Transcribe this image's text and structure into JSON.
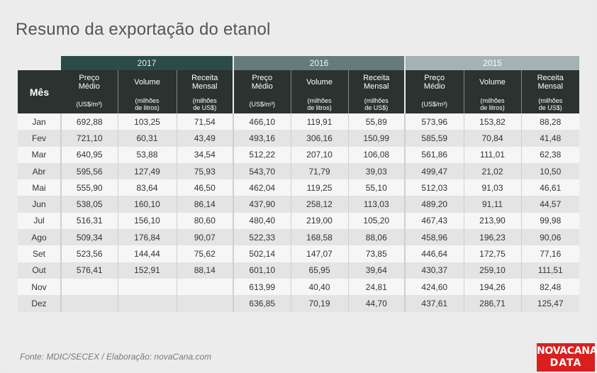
{
  "title": "Resumo da exportação do etanol",
  "header": {
    "mes": "Mês",
    "years": [
      "2017",
      "2016",
      "2015"
    ],
    "columns": [
      {
        "title": "Preço Médio",
        "unit": "(US$/m³)"
      },
      {
        "title": "Volume",
        "unit": "(milhões de litros)"
      },
      {
        "title": "Receita Mensal",
        "unit": "(milhões de US$)"
      }
    ]
  },
  "rows": [
    {
      "mes": "Jan",
      "v": [
        "692,88",
        "103,25",
        "71,54",
        "466,10",
        "119,91",
        "55,89",
        "573,96",
        "153,82",
        "88,28"
      ]
    },
    {
      "mes": "Fev",
      "v": [
        "721,10",
        "60,31",
        "43,49",
        "493,16",
        "306,16",
        "150,99",
        "585,59",
        "70,84",
        "41,48"
      ]
    },
    {
      "mes": "Mar",
      "v": [
        "640,95",
        "53,88",
        "34,54",
        "512,22",
        "207,10",
        "106,08",
        "561,86",
        "111,01",
        "62,38"
      ]
    },
    {
      "mes": "Abr",
      "v": [
        "595,56",
        "127,49",
        "75,93",
        "543,70",
        "71,79",
        "39,03",
        "499,47",
        "21,02",
        "10,50"
      ]
    },
    {
      "mes": "Mai",
      "v": [
        "555,90",
        "83,64",
        "46,50",
        "462,04",
        "119,25",
        "55,10",
        "512,03",
        "91,03",
        "46,61"
      ]
    },
    {
      "mes": "Jun",
      "v": [
        "538,05",
        "160,10",
        "86,14",
        "437,90",
        "258,12",
        "113,03",
        "489,20",
        "91,11",
        "44,57"
      ]
    },
    {
      "mes": "Jul",
      "v": [
        "516,31",
        "156,10",
        "80,60",
        "480,40",
        "219,00",
        "105,20",
        "467,43",
        "213,90",
        "99,98"
      ]
    },
    {
      "mes": "Ago",
      "v": [
        "509,34",
        "176,84",
        "90,07",
        "522,33",
        "168,58",
        "88,06",
        "458,96",
        "196,23",
        "90,06"
      ]
    },
    {
      "mes": "Set",
      "v": [
        "523,56",
        "144,44",
        "75,62",
        "502,14",
        "147,07",
        "73,85",
        "446,64",
        "172,75",
        "77,16"
      ]
    },
    {
      "mes": "Out",
      "v": [
        "576,41",
        "152,91",
        "88,14",
        "601,10",
        "65,95",
        "39,64",
        "430,37",
        "259,10",
        "111,51"
      ]
    },
    {
      "mes": "Nov",
      "v": [
        "",
        "",
        "",
        "613,99",
        "40,40",
        "24,81",
        "424,60",
        "194,26",
        "82,48"
      ]
    },
    {
      "mes": "Dez",
      "v": [
        "",
        "",
        "",
        "636,85",
        "70,19",
        "44,70",
        "437,61",
        "286,71",
        "125,47"
      ]
    }
  ],
  "footer": "Fonte: MDIC/SECEX / Elaboração: novaCana.com",
  "logo": {
    "line1": "NOVACANA",
    "line2": "DATA"
  }
}
